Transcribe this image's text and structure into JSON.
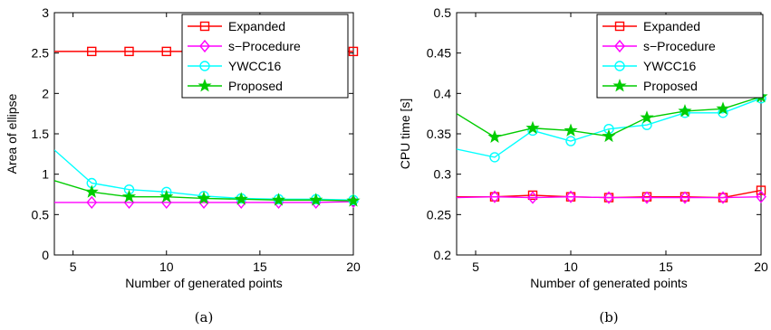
{
  "chart_data": [
    {
      "type": "line",
      "subcaption": "(a)",
      "xlabel": "Number of generated points",
      "ylabel": "Area of ellipse",
      "xlim": [
        4,
        20
      ],
      "ylim": [
        0,
        3
      ],
      "xticks": [
        5,
        10,
        15,
        20
      ],
      "yticks": [
        0,
        0.5,
        1,
        1.5,
        2,
        2.5,
        3
      ],
      "ytick_labels": [
        "0",
        "0.5",
        "1",
        "1.5",
        "2",
        "2.5",
        "3"
      ],
      "grid": false,
      "legend_position": "top-right",
      "x": [
        4,
        6,
        8,
        10,
        12,
        14,
        16,
        18,
        20
      ],
      "series": [
        {
          "name": "Expanded",
          "color": "#ff0000",
          "marker": "square",
          "values": [
            2.52,
            2.52,
            2.52,
            2.52,
            2.52,
            2.52,
            2.52,
            2.52,
            2.52
          ]
        },
        {
          "name": "s−Procedure",
          "color": "#ff00ff",
          "marker": "diamond",
          "values": [
            0.65,
            0.65,
            0.65,
            0.65,
            0.65,
            0.65,
            0.65,
            0.65,
            0.66
          ]
        },
        {
          "name": "YWCC16",
          "color": "#00ffff",
          "marker": "circle",
          "values": [
            1.3,
            0.89,
            0.81,
            0.78,
            0.73,
            0.7,
            0.69,
            0.69,
            0.68
          ]
        },
        {
          "name": "Proposed",
          "color": "#00cc00",
          "marker": "star",
          "values": [
            0.92,
            0.78,
            0.72,
            0.72,
            0.7,
            0.69,
            0.68,
            0.68,
            0.67
          ]
        }
      ]
    },
    {
      "type": "line",
      "subcaption": "(b)",
      "xlabel": "Number of generated points",
      "ylabel": "CPU time [s]",
      "xlim": [
        4,
        20
      ],
      "ylim": [
        0.2,
        0.5
      ],
      "xticks": [
        5,
        10,
        15,
        20
      ],
      "yticks": [
        0.2,
        0.25,
        0.3,
        0.35,
        0.4,
        0.45,
        0.5
      ],
      "ytick_labels": [
        "0.2",
        "0.25",
        "0.3",
        "0.35",
        "0.4",
        "0.45",
        "0.5"
      ],
      "grid": false,
      "legend_position": "top-right",
      "x": [
        4,
        6,
        8,
        10,
        12,
        14,
        16,
        18,
        20
      ],
      "series": [
        {
          "name": "Expanded",
          "color": "#ff0000",
          "marker": "square",
          "values": [
            0.272,
            0.272,
            0.274,
            0.272,
            0.271,
            0.272,
            0.272,
            0.271,
            0.28
          ]
        },
        {
          "name": "s−Procedure",
          "color": "#ff00ff",
          "marker": "diamond",
          "values": [
            0.271,
            0.272,
            0.271,
            0.272,
            0.271,
            0.271,
            0.271,
            0.271,
            0.272
          ]
        },
        {
          "name": "YWCC16",
          "color": "#00ffff",
          "marker": "circle",
          "values": [
            0.331,
            0.321,
            0.354,
            0.341,
            0.356,
            0.361,
            0.376,
            0.376,
            0.394
          ]
        },
        {
          "name": "Proposed",
          "color": "#00cc00",
          "marker": "star",
          "values": [
            0.375,
            0.346,
            0.357,
            0.354,
            0.347,
            0.37,
            0.378,
            0.381,
            0.396
          ]
        }
      ]
    }
  ]
}
